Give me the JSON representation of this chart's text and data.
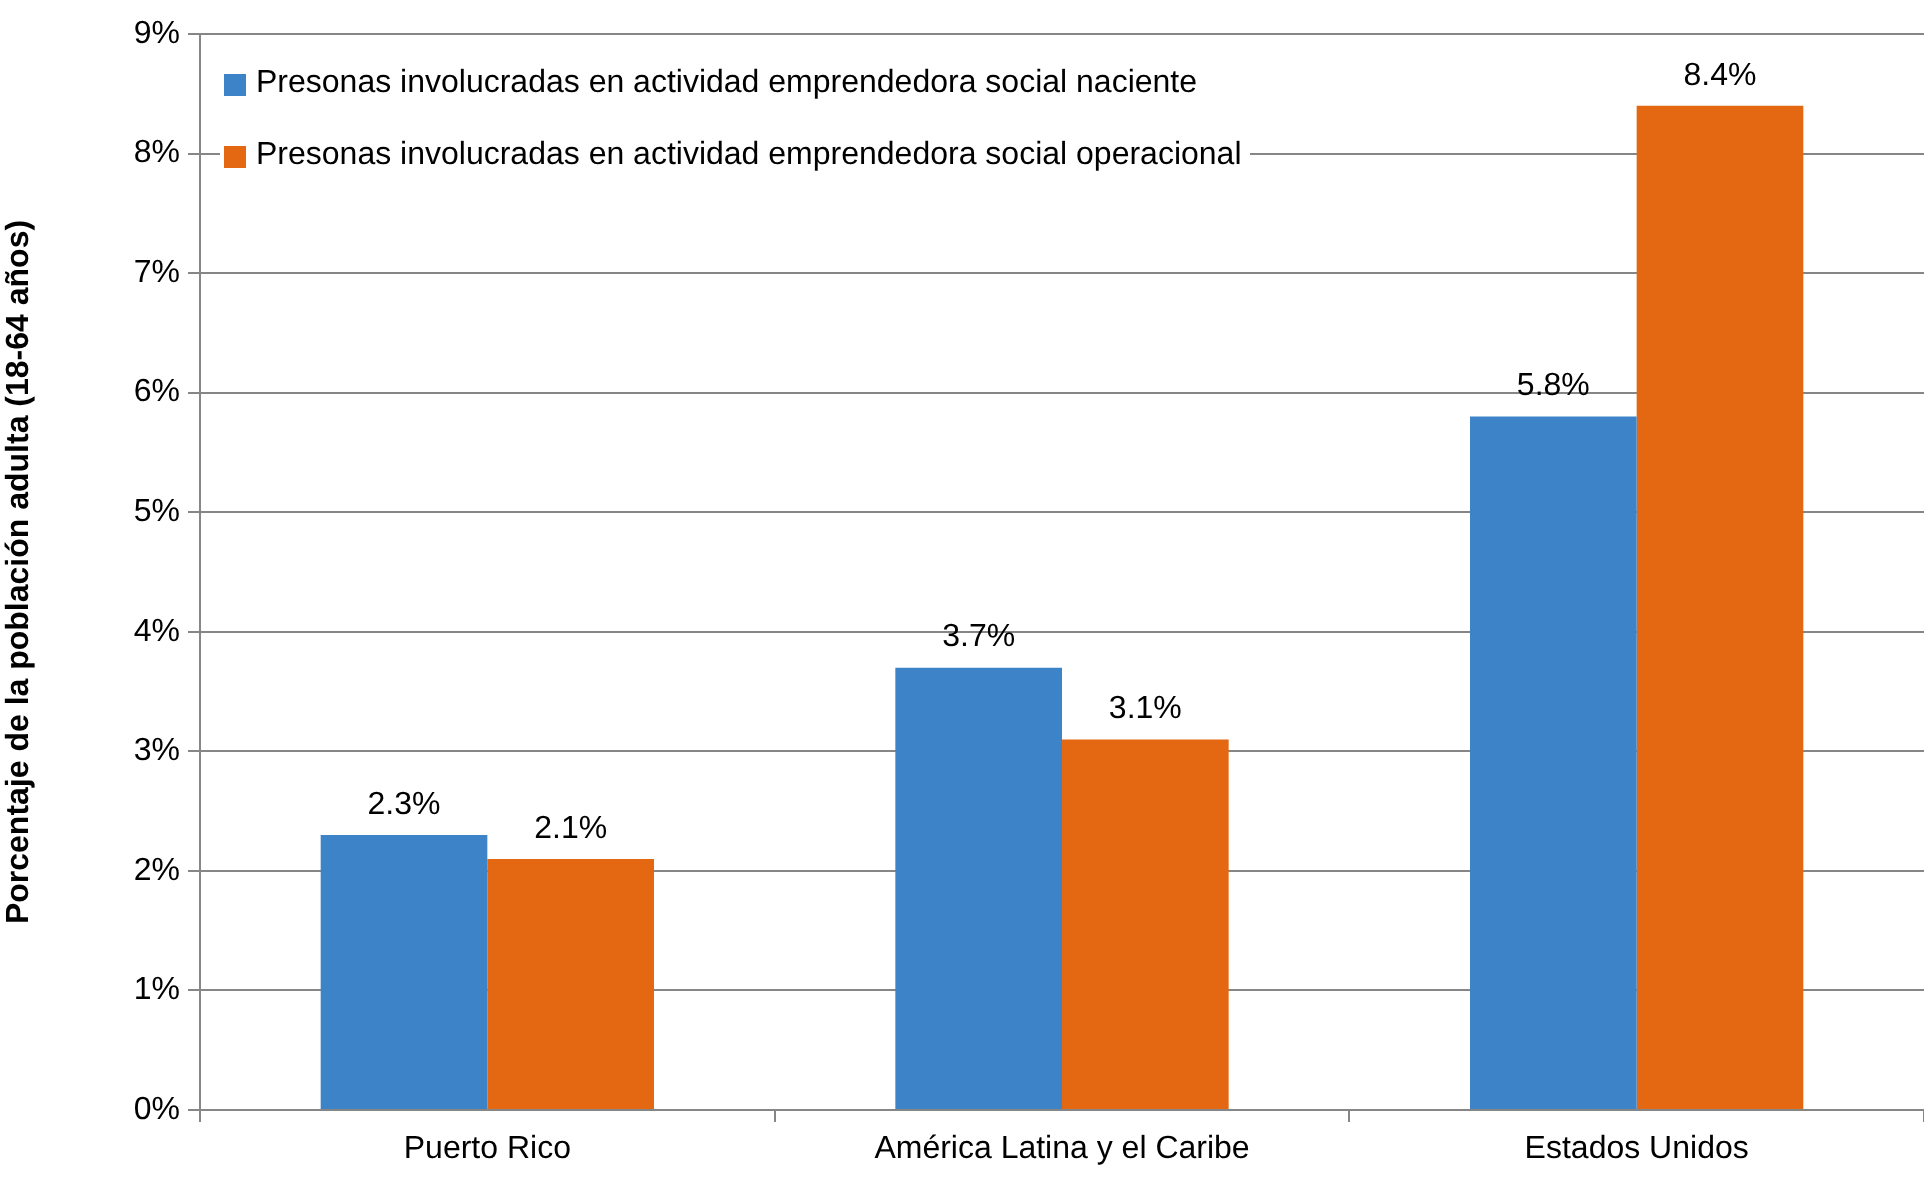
{
  "chart_data": {
    "type": "bar",
    "ylabel": "Porcentaje de la población adulta (18-64 años)",
    "categories": [
      "Puerto Rico",
      "América Latina y el Caribe",
      "Estados Unidos"
    ],
    "series": [
      {
        "name": "Presonas involucradas en actividad emprendedora social naciente",
        "color": "#3c83c7",
        "values": [
          2.3,
          3.7,
          5.8
        ]
      },
      {
        "name": "Presonas involucradas en actividad emprendedora social operacional",
        "color": "#e46712",
        "values": [
          2.1,
          3.1,
          8.4
        ]
      }
    ],
    "value_labels": [
      [
        "2.3%",
        "3.7%",
        "5.8%"
      ],
      [
        "2.1%",
        "3.1%",
        "8.4%"
      ]
    ],
    "ylim": [
      0,
      9
    ],
    "yticks": [
      {
        "value": 0,
        "label": "0%"
      },
      {
        "value": 1,
        "label": "1%"
      },
      {
        "value": 2,
        "label": "2%"
      },
      {
        "value": 3,
        "label": "3%"
      },
      {
        "value": 4,
        "label": "4%"
      },
      {
        "value": 5,
        "label": "5%"
      },
      {
        "value": 6,
        "label": "6%"
      },
      {
        "value": 7,
        "label": "7%"
      },
      {
        "value": 8,
        "label": "8%"
      },
      {
        "value": 9,
        "label": "9%"
      }
    ],
    "grid": "y",
    "legend": "top left"
  }
}
